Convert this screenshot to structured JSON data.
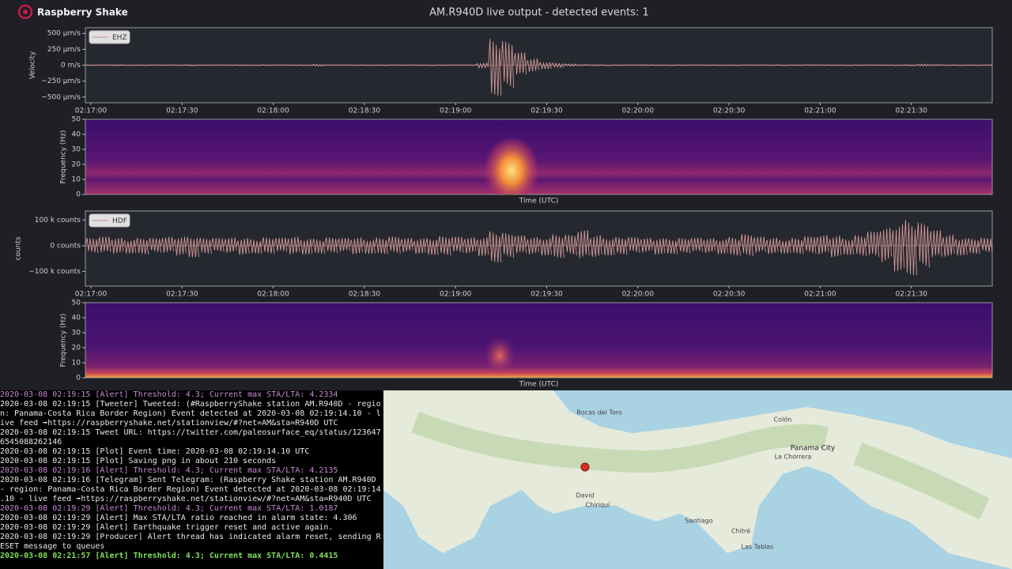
{
  "header": {
    "logo": "Raspberry Shake",
    "title": "AM.R940D live output - detected events: 1"
  },
  "time_ticks": [
    "02:17:00",
    "02:17:30",
    "02:18:00",
    "02:18:30",
    "02:19:00",
    "02:19:30",
    "02:20:00",
    "02:20:30",
    "02:21:00",
    "02:21:30"
  ],
  "panels": [
    {
      "legend": "EHZ",
      "ylabel": "Velocity",
      "ylim": [
        -590,
        590
      ],
      "yticks": [
        {
          "value": 500,
          "label": "500 µm/s"
        },
        {
          "value": 250,
          "label": "250 µm/s"
        },
        {
          "value": 0,
          "label": "0 m/s"
        },
        {
          "value": -250,
          "label": "−250 µm/s"
        },
        {
          "value": -500,
          "label": "−500 µm/s"
        }
      ],
      "envelope": [
        8,
        8,
        10,
        8,
        8,
        9,
        8,
        8,
        10,
        8,
        8,
        8,
        9,
        8,
        8,
        8,
        8,
        9,
        15,
        8,
        8,
        8,
        8,
        9,
        8,
        8,
        8,
        8,
        8,
        9,
        8,
        40,
        480,
        380,
        200,
        110,
        60,
        35,
        20,
        12,
        10,
        9,
        8,
        8,
        9,
        8,
        8,
        8,
        8,
        8,
        9,
        8,
        8,
        8,
        8,
        8,
        8,
        9,
        8,
        8,
        8,
        8,
        8,
        8,
        9,
        10,
        18,
        12,
        8,
        8,
        8,
        8
      ]
    },
    {
      "ylabel": "Frequency (Hz)",
      "xlabel": "Time (UTC)",
      "ylim": [
        0,
        50
      ],
      "yticks": [
        0,
        10,
        20,
        30,
        40,
        50
      ]
    },
    {
      "legend": "HDF",
      "ylabel": "counts",
      "ylim": [
        -157000,
        135000
      ],
      "yticks": [
        {
          "value": 100000,
          "label": "100 k counts"
        },
        {
          "value": 0,
          "label": "0  counts"
        },
        {
          "value": -100000,
          "label": "−100 k counts"
        }
      ],
      "envelope": [
        30000,
        35000,
        32000,
        30000,
        33000,
        30000,
        34000,
        38000,
        45000,
        32000,
        30000,
        32000,
        35000,
        30000,
        33000,
        31000,
        36000,
        34000,
        30000,
        32000,
        30000,
        34000,
        31000,
        33000,
        35000,
        30000,
        32000,
        36000,
        38000,
        35000,
        33000,
        40000,
        65000,
        50000,
        40000,
        35000,
        38000,
        48000,
        42000,
        60000,
        45000,
        38000,
        35000,
        33000,
        30000,
        34000,
        32000,
        30000,
        31000,
        30000,
        32000,
        38000,
        45000,
        35000,
        33000,
        30000,
        32000,
        36000,
        40000,
        45000,
        35000,
        42000,
        55000,
        70000,
        100000,
        115000,
        90000,
        60000,
        45000,
        38000,
        32000,
        30000
      ]
    },
    {
      "ylabel": "Frequency (Hz)",
      "xlabel": "Time (UTC)",
      "ylim": [
        0,
        50
      ],
      "yticks": [
        0,
        10,
        20,
        30,
        40,
        50
      ]
    }
  ],
  "terminal": {
    "lines": [
      "2020-03-08 02:19:15 [Alert] Threshold: 4.3; Current max STA/LTA: 4.2334",
      "2020-03-08 02:19:15 [Tweeter] Tweeted: (#RaspberryShake station AM.R940D - regio",
      "n: Panama-Costa Rica Border Region) Event detected at 2020-03-08 02:19:14.10 - l",
      "ive feed ➡https://raspberryshake.net/stationview/#?net=AM&sta=R940D UTC",
      "2020-03-08 02:19:15 Tweet URL: https://twitter.com/paleosurface_eq/status/123647",
      "6545088262146",
      "2020-03-08 02:19:15 [Plot] Event time: 2020-03-08 02:19:14.10 UTC",
      "2020-03-08 02:19:15 [Plot] Saving png in about 210 seconds",
      "2020-03-08 02:19:16 [Alert] Threshold: 4.3; Current max STA/LTA: 4.2135",
      "2020-03-08 02:19:16 [Telegram] Sent Telegram: (Raspberry Shake station AM.R940D",
      "- region: Panama-Costa Rica Border Region) Event detected at 2020-03-08 02:19:14",
      ".10 - live feed ➡https://raspberryshake.net/stationview/#?net=AM&sta=R940D UTC",
      "2020-03-08 02:19:29 [Alert] Threshold: 4.3; Current max STA/LTA: 1.0187",
      "2020-03-08 02:19:29 [Alert] Max STA/LTA ratio reached in alarm state: 4.306",
      "2020-03-08 02:19:29 [Alert] Earthquake trigger reset and active again.",
      "2020-03-08 02:19:29 [Producer] Alert thread has indicated alarm reset, sending R",
      "ESET message to queues",
      "2020-03-08 02:21:57 [Alert] Threshold: 4.3; Current max STA/LTA: 0.4415"
    ]
  },
  "map": {
    "labels": [
      "Bocas del Toro",
      "Colón",
      "Panama City",
      "La Chorrera",
      "David",
      "Chiriquí",
      "Santiago",
      "Chitré",
      "Las Tablas"
    ]
  }
}
